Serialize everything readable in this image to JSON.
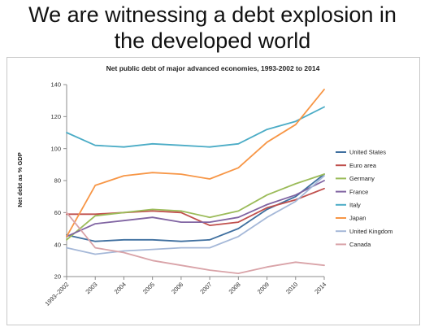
{
  "slide": {
    "title_line1": "We are witnessing a debt explosion in",
    "title_line2": "the developed world"
  },
  "chart_data": {
    "type": "line",
    "title": "Net public debt of major advanced economies, 1993-2002 to 2014",
    "xlabel": "",
    "ylabel": "Net debt as % GDP",
    "categories": [
      "1993–2002",
      "2003",
      "2004",
      "2005",
      "2006",
      "2007",
      "2008",
      "2009",
      "2010",
      "2014"
    ],
    "ylim": [
      20,
      140
    ],
    "yticks": [
      20,
      40,
      60,
      80,
      100,
      120,
      140
    ],
    "grid": false,
    "legend_position": "right",
    "series": [
      {
        "name": "United States",
        "color": "#3f6f9f",
        "values": [
          46,
          42,
          43,
          43,
          42,
          43,
          50,
          62,
          70,
          84
        ]
      },
      {
        "name": "Euro area",
        "color": "#c0504d",
        "values": [
          59,
          59,
          60,
          61,
          60,
          52,
          54,
          63,
          68,
          75
        ]
      },
      {
        "name": "Germany",
        "color": "#9bbb59",
        "values": [
          43,
          58,
          60,
          62,
          61,
          57,
          61,
          71,
          78,
          84
        ]
      },
      {
        "name": "France",
        "color": "#8064a2",
        "values": [
          45,
          53,
          55,
          57,
          54,
          54,
          57,
          65,
          71,
          80
        ]
      },
      {
        "name": "Italy",
        "color": "#4bacc6",
        "values": [
          110,
          102,
          101,
          103,
          102,
          101,
          103,
          112,
          117,
          126
        ]
      },
      {
        "name": "Japan",
        "color": "#f79646",
        "values": [
          45,
          77,
          83,
          85,
          84,
          81,
          88,
          104,
          115,
          137
        ]
      },
      {
        "name": "United Kingdom",
        "color": "#a5b8d8",
        "values": [
          38,
          34,
          36,
          37,
          38,
          38,
          45,
          57,
          67,
          83
        ]
      },
      {
        "name": "Canada",
        "color": "#d9a3a8",
        "values": [
          60,
          38,
          35,
          30,
          27,
          24,
          22,
          26,
          29,
          27
        ]
      }
    ]
  }
}
